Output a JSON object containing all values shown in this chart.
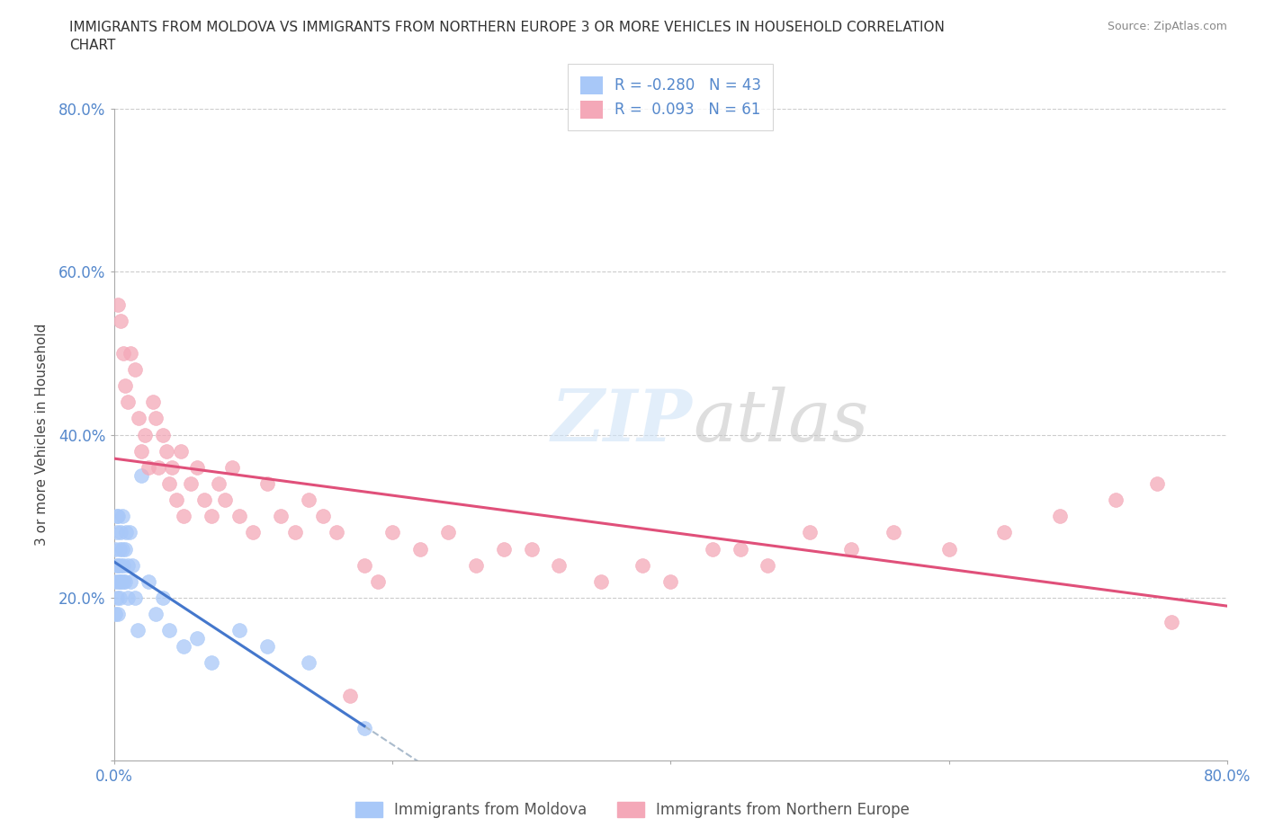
{
  "title": "IMMIGRANTS FROM MOLDOVA VS IMMIGRANTS FROM NORTHERN EUROPE 3 OR MORE VEHICLES IN HOUSEHOLD CORRELATION\nCHART",
  "source": "Source: ZipAtlas.com",
  "ylabel": "3 or more Vehicles in Household",
  "xlim": [
    0.0,
    0.8
  ],
  "ylim": [
    0.0,
    0.8
  ],
  "legend1_label": "Immigrants from Moldova",
  "legend2_label": "Immigrants from Northern Europe",
  "moldova_color": "#a8c8f8",
  "northern_color": "#f4a8b8",
  "moldova_R": -0.28,
  "moldova_N": 43,
  "northern_R": 0.093,
  "northern_N": 61,
  "grid_color": "#cccccc",
  "background_color": "#ffffff",
  "moldova_points_x": [
    0.001,
    0.001,
    0.001,
    0.002,
    0.002,
    0.002,
    0.002,
    0.003,
    0.003,
    0.003,
    0.003,
    0.004,
    0.004,
    0.004,
    0.005,
    0.005,
    0.005,
    0.006,
    0.006,
    0.007,
    0.007,
    0.008,
    0.008,
    0.009,
    0.01,
    0.01,
    0.011,
    0.012,
    0.013,
    0.015,
    0.017,
    0.02,
    0.025,
    0.03,
    0.035,
    0.04,
    0.05,
    0.06,
    0.07,
    0.09,
    0.11,
    0.14,
    0.18
  ],
  "moldova_points_y": [
    0.22,
    0.18,
    0.26,
    0.2,
    0.24,
    0.28,
    0.3,
    0.22,
    0.18,
    0.24,
    0.3,
    0.2,
    0.26,
    0.22,
    0.24,
    0.28,
    0.22,
    0.26,
    0.3,
    0.24,
    0.22,
    0.26,
    0.22,
    0.28,
    0.24,
    0.2,
    0.28,
    0.22,
    0.24,
    0.2,
    0.16,
    0.35,
    0.22,
    0.18,
    0.2,
    0.16,
    0.14,
    0.15,
    0.12,
    0.16,
    0.14,
    0.12,
    0.04
  ],
  "northern_points_x": [
    0.003,
    0.005,
    0.007,
    0.008,
    0.01,
    0.012,
    0.015,
    0.018,
    0.02,
    0.022,
    0.025,
    0.028,
    0.03,
    0.032,
    0.035,
    0.038,
    0.04,
    0.042,
    0.045,
    0.048,
    0.05,
    0.055,
    0.06,
    0.065,
    0.07,
    0.075,
    0.08,
    0.085,
    0.09,
    0.1,
    0.11,
    0.12,
    0.13,
    0.14,
    0.15,
    0.16,
    0.17,
    0.18,
    0.19,
    0.2,
    0.22,
    0.24,
    0.26,
    0.28,
    0.3,
    0.32,
    0.35,
    0.38,
    0.4,
    0.43,
    0.45,
    0.47,
    0.5,
    0.53,
    0.56,
    0.6,
    0.64,
    0.68,
    0.72,
    0.75,
    0.76
  ],
  "northern_points_y": [
    0.56,
    0.54,
    0.5,
    0.46,
    0.44,
    0.5,
    0.48,
    0.42,
    0.38,
    0.4,
    0.36,
    0.44,
    0.42,
    0.36,
    0.4,
    0.38,
    0.34,
    0.36,
    0.32,
    0.38,
    0.3,
    0.34,
    0.36,
    0.32,
    0.3,
    0.34,
    0.32,
    0.36,
    0.3,
    0.28,
    0.34,
    0.3,
    0.28,
    0.32,
    0.3,
    0.28,
    0.08,
    0.24,
    0.22,
    0.28,
    0.26,
    0.28,
    0.24,
    0.26,
    0.26,
    0.24,
    0.22,
    0.24,
    0.22,
    0.26,
    0.26,
    0.24,
    0.28,
    0.26,
    0.28,
    0.26,
    0.28,
    0.3,
    0.32,
    0.34,
    0.17
  ]
}
